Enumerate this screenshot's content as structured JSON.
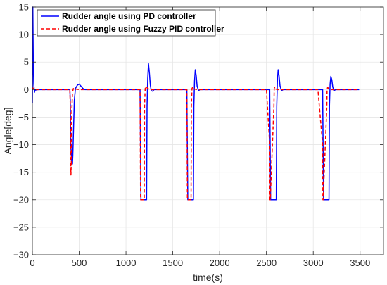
{
  "chart_data": {
    "type": "line",
    "xlabel": "time(s)",
    "ylabel": "Angle[deg]",
    "xlim": [
      0,
      3750
    ],
    "ylim": [
      -30,
      15
    ],
    "xticks": [
      0,
      500,
      1000,
      1500,
      2000,
      2500,
      3000,
      3500
    ],
    "yticks": [
      -30,
      -25,
      -20,
      -15,
      -10,
      -5,
      0,
      5,
      10,
      15
    ],
    "grid": true,
    "legend_position": "top-left",
    "series": [
      {
        "name": "Rudder angle using PD controller",
        "color": "#0000ff",
        "style": "solid",
        "x": [
          0,
          5,
          10,
          15,
          22,
          30,
          60,
          100,
          200,
          300,
          400,
          405,
          410,
          420,
          428,
          432,
          440,
          448,
          460,
          480,
          500,
          520,
          540,
          560,
          600,
          700,
          800,
          900,
          1000,
          1100,
          1150,
          1155,
          1160,
          1220,
          1225,
          1232,
          1240,
          1250,
          1260,
          1270,
          1285,
          1300,
          1350,
          1400,
          1500,
          1600,
          1650,
          1655,
          1660,
          1720,
          1725,
          1732,
          1740,
          1750,
          1760,
          1775,
          1790,
          1850,
          1950,
          2100,
          2300,
          2500,
          2535,
          2540,
          2545,
          2605,
          2610,
          2617,
          2625,
          2635,
          2645,
          2660,
          2680,
          2750,
          2900,
          3050,
          3100,
          3105,
          3110,
          3168,
          3173,
          3180,
          3188,
          3198,
          3208,
          3220,
          3240,
          3300,
          3400,
          3490
        ],
        "y": [
          -2.5,
          15,
          5,
          1,
          -0.5,
          -0.1,
          0,
          0,
          0,
          0,
          0,
          -2,
          -10,
          -13,
          -13.5,
          -12,
          -7,
          -2,
          0.2,
          0.8,
          1,
          0.6,
          0.2,
          0,
          0,
          0,
          0,
          0,
          0,
          0,
          0,
          -10,
          -20,
          -20,
          -3,
          2,
          4.7,
          3,
          0.8,
          -0.2,
          -0.3,
          0,
          0,
          0,
          0,
          0,
          0,
          -10,
          -20,
          -20,
          -3,
          1.5,
          3.6,
          2.5,
          0.6,
          -0.2,
          0,
          0,
          0,
          0,
          0,
          0,
          0,
          -10,
          -20,
          -20,
          -3,
          1.5,
          3.6,
          2.5,
          0.7,
          -0.2,
          0,
          0,
          0,
          0,
          0,
          -10,
          -20,
          -20,
          -3,
          1,
          2.4,
          1.8,
          0.5,
          -0.2,
          0,
          0,
          0,
          0
        ]
      },
      {
        "name": "Rudder angle using Fuzzy PID controller",
        "color": "#ff0000",
        "style": "dashed",
        "x": [
          0,
          5,
          20,
          60,
          100,
          200,
          300,
          400,
          405,
          408,
          412,
          416,
          420,
          428,
          440,
          460,
          500,
          600,
          700,
          800,
          900,
          1000,
          1100,
          1150,
          1153,
          1156,
          1195,
          1198,
          1205,
          1215,
          1230,
          1260,
          1300,
          1500,
          1600,
          1650,
          1653,
          1656,
          1695,
          1698,
          1705,
          1715,
          1730,
          1760,
          1800,
          2000,
          2300,
          2500,
          2535,
          2538,
          2541,
          2580,
          2583,
          2590,
          2600,
          2615,
          2640,
          2700,
          2900,
          3050,
          3100,
          3103,
          3106,
          3145,
          3148,
          3155,
          3165,
          3180,
          3200,
          3260,
          3400,
          3490
        ],
        "y": [
          0,
          0.3,
          0,
          0,
          0,
          0,
          0,
          0,
          -3,
          -8,
          -15.5,
          -13,
          -5,
          -0.5,
          0.3,
          0.1,
          0,
          0,
          0,
          0,
          0,
          0,
          0,
          0,
          -10,
          -20,
          -20,
          -3,
          0.2,
          0.6,
          0.2,
          0,
          0,
          0,
          0,
          0,
          -10,
          -20,
          -20,
          -3,
          0.2,
          0.5,
          0.1,
          0,
          0,
          0,
          0,
          0,
          -10,
          -20,
          -20,
          -3,
          0.2,
          0.5,
          0.1,
          0,
          0,
          0,
          0,
          0,
          -10,
          -20,
          -20,
          -3,
          0.2,
          0.4,
          0.1,
          0,
          0,
          0,
          0,
          0
        ]
      }
    ]
  }
}
